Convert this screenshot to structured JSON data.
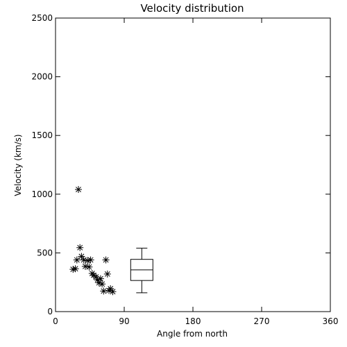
{
  "chart_data": {
    "type": "scatter",
    "title": "Velocity distribution",
    "xlabel": "Angle from north",
    "ylabel": "Velocity (km/s)",
    "xlim": [
      0,
      360
    ],
    "ylim": [
      0,
      2500
    ],
    "xticks": [
      0,
      90,
      180,
      270,
      360
    ],
    "yticks": [
      0,
      500,
      1000,
      1500,
      2000,
      2500
    ],
    "grid": false,
    "marker": "asterisk",
    "colors": {
      "foreground": "#000000",
      "background": "#ffffff"
    },
    "points": [
      {
        "x": 23,
        "y": 360
      },
      {
        "x": 26,
        "y": 365
      },
      {
        "x": 28,
        "y": 440
      },
      {
        "x": 30,
        "y": 1040
      },
      {
        "x": 32,
        "y": 545
      },
      {
        "x": 34,
        "y": 470
      },
      {
        "x": 37,
        "y": 440
      },
      {
        "x": 39,
        "y": 385
      },
      {
        "x": 42,
        "y": 435
      },
      {
        "x": 44,
        "y": 380
      },
      {
        "x": 46,
        "y": 440
      },
      {
        "x": 48,
        "y": 325
      },
      {
        "x": 50,
        "y": 310
      },
      {
        "x": 53,
        "y": 295
      },
      {
        "x": 55,
        "y": 270
      },
      {
        "x": 57,
        "y": 245
      },
      {
        "x": 59,
        "y": 280
      },
      {
        "x": 61,
        "y": 235
      },
      {
        "x": 63,
        "y": 175
      },
      {
        "x": 66,
        "y": 440
      },
      {
        "x": 68,
        "y": 320
      },
      {
        "x": 70,
        "y": 180
      },
      {
        "x": 72,
        "y": 195
      },
      {
        "x": 75,
        "y": 170
      }
    ],
    "boxplot": {
      "x": 113,
      "min": 160,
      "q1": 265,
      "median": 355,
      "q3": 445,
      "max": 540
    }
  }
}
